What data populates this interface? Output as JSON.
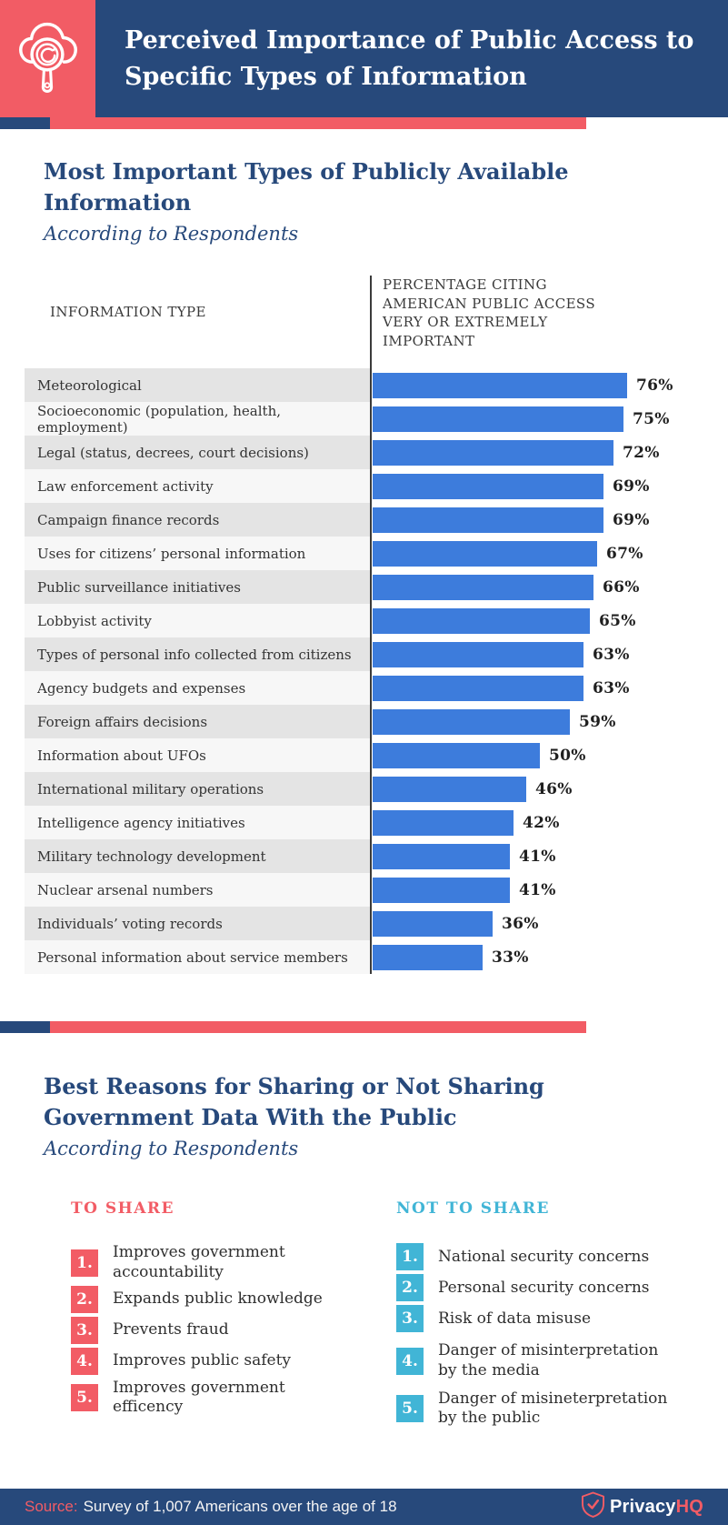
{
  "colors": {
    "dark_blue": "#27497B",
    "coral": "#F25C65",
    "bar_blue": "#3D7CDC",
    "teal": "#41B5D6",
    "row_dark": "#E4E4E4",
    "row_light": "#F7F7F7"
  },
  "header": {
    "title": "Perceived Importance of Public Access to Specific Types of Information"
  },
  "section1": {
    "title": "Most Important Types of Publicly Available Information",
    "subtitle": "According to Respondents",
    "col_left_header": "INFORMATION TYPE",
    "col_right_header": "PERCENTAGE CITING AMERICAN PUBLIC ACCESS VERY OR EXTREMELY IMPORTANT"
  },
  "chart_data": {
    "type": "bar",
    "orientation": "horizontal",
    "title": "Most Important Types of Publicly Available Information",
    "xlabel": "PERCENTAGE CITING AMERICAN PUBLIC ACCESS VERY OR EXTREMELY IMPORTANT",
    "ylabel": "INFORMATION TYPE",
    "xlim": [
      0,
      80
    ],
    "grid": false,
    "bar_color": "#3D7CDC",
    "categories": [
      "Meteorological",
      "Socioeconomic (population, health, employment)",
      "Legal (status, decrees, court decisions)",
      "Law enforcement activity",
      "Campaign finance records",
      "Uses for citizens’ personal information",
      "Public surveillance initiatives",
      "Lobbyist activity",
      "Types of personal info collected from citizens",
      "Agency budgets and expenses",
      "Foreign affairs decisions",
      "Information about UFOs",
      "International military operations",
      "Intelligence agency initiatives",
      "Military technology development",
      "Nuclear arsenal numbers",
      "Individuals’ voting records",
      "Personal information about service members"
    ],
    "values": [
      76,
      75,
      72,
      69,
      69,
      67,
      66,
      65,
      63,
      63,
      59,
      50,
      46,
      42,
      41,
      41,
      36,
      33
    ],
    "value_labels": [
      "76%",
      "75%",
      "72%",
      "69%",
      "69%",
      "67%",
      "66%",
      "65%",
      "63%",
      "63%",
      "59%",
      "50%",
      "46%",
      "42%",
      "41%",
      "41%",
      "36%",
      "33%"
    ]
  },
  "section2": {
    "title": "Best Reasons for Sharing or Not Sharing Government Data With the Public",
    "subtitle": "According to Respondents",
    "rank_labels": [
      "1.",
      "2.",
      "3.",
      "4.",
      "5."
    ],
    "to_share": {
      "heading": "TO SHARE",
      "items": [
        "Improves government accountability",
        "Expands public knowledge",
        "Prevents fraud",
        "Improves public safety",
        "Improves government efficency"
      ]
    },
    "not_to_share": {
      "heading": "NOT TO SHARE",
      "items": [
        "National security concerns",
        "Personal security concerns",
        "Risk of data misuse",
        "Danger of misinterpretation by the media",
        "Danger of misineterpretation by the public"
      ]
    }
  },
  "footer": {
    "source_label": "Source:",
    "source_text": "Survey of 1,007 Americans over the age of 18",
    "brand_name": "Privacy",
    "brand_suffix": "HQ"
  }
}
